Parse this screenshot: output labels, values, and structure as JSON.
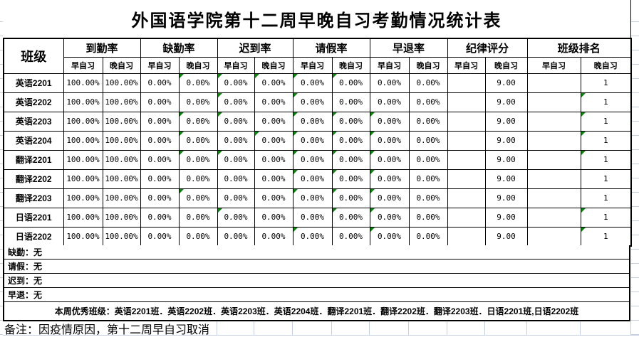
{
  "title": "外国语学院第十二周早晚自习考勤情况统计表",
  "table": {
    "class_header": "班级",
    "groups": [
      {
        "label": "到勤率"
      },
      {
        "label": "缺勤率"
      },
      {
        "label": "迟到率"
      },
      {
        "label": "请假率"
      },
      {
        "label": "早退率"
      },
      {
        "label": "纪律评分"
      },
      {
        "label": "班级排名"
      }
    ],
    "subheaders": [
      "早自习",
      "晚自习"
    ],
    "rows": [
      {
        "class": "英语2201",
        "values": [
          "100.00%",
          "100.00%",
          "0.00%",
          "0.00%",
          "0.00%",
          "0.00%",
          "0.00%",
          "0.00%",
          "0.00%",
          "0.00%",
          "",
          "9.00",
          "",
          "1"
        ],
        "markers": [
          3,
          4,
          5,
          6,
          7
        ]
      },
      {
        "class": "英语2202",
        "values": [
          "100.00%",
          "100.00%",
          "0.00%",
          "0.00%",
          "0.00%",
          "0.00%",
          "0.00%",
          "0.00%",
          "0.00%",
          "0.00%",
          "",
          "9.00",
          "",
          "1"
        ],
        "markers": [
          4,
          6,
          13
        ]
      },
      {
        "class": "英语2203",
        "values": [
          "100.00%",
          "100.00%",
          "0.00%",
          "0.00%",
          "0.00%",
          "0.00%",
          "0.00%",
          "0.00%",
          "0.00%",
          "0.00%",
          "",
          "9.00",
          "",
          "1"
        ],
        "markers": [
          3,
          4,
          6,
          7,
          8,
          13
        ]
      },
      {
        "class": "英语2204",
        "values": [
          "100.00%",
          "100.00%",
          "0.00%",
          "0.00%",
          "0.00%",
          "0.00%",
          "0.00%",
          "0.00%",
          "0.00%",
          "0.00%",
          "",
          "9.00",
          "",
          "1"
        ],
        "markers": [
          3,
          5,
          6,
          7,
          8,
          13
        ]
      },
      {
        "class": "翻译2201",
        "values": [
          "100.00%",
          "100.00%",
          "0.00%",
          "0.00%",
          "0.00%",
          "0.00%",
          "0.00%",
          "0.00%",
          "0.00%",
          "0.00%",
          "",
          "9.00",
          "",
          "1"
        ],
        "markers": [
          3,
          4,
          6,
          7,
          8,
          13
        ]
      },
      {
        "class": "翻译2202",
        "values": [
          "100.00%",
          "100.00%",
          "0.00%",
          "0.00%",
          "0.00%",
          "0.00%",
          "0.00%",
          "0.00%",
          "0.00%",
          "0.00%",
          "",
          "9.00",
          "",
          "1"
        ],
        "markers": [
          6,
          7,
          8
        ]
      },
      {
        "class": "翻译2203",
        "values": [
          "100.00%",
          "100.00%",
          "0.00%",
          "0.00%",
          "0.00%",
          "0.00%",
          "0.00%",
          "0.00%",
          "0.00%",
          "0.00%",
          "",
          "9.00",
          "",
          "1"
        ],
        "markers": [
          3,
          6,
          7,
          8
        ]
      },
      {
        "class": "日语2201",
        "values": [
          "100.00%",
          "100.00%",
          "0.00%",
          "0.00%",
          "0.00%",
          "0.00%",
          "0.00%",
          "0.00%",
          "0.00%",
          "0.00%",
          "",
          "9.00",
          "",
          "1"
        ],
        "markers": [
          4,
          7,
          8,
          13
        ]
      },
      {
        "class": "日语2202",
        "values": [
          "100.00%",
          "100.00%",
          "0.00%",
          "0.00%",
          "0.00%",
          "0.00%",
          "0.00%",
          "0.00%",
          "0.00%",
          "0.00%",
          "",
          "9.00",
          "",
          "1"
        ],
        "markers": [
          6,
          8,
          13
        ]
      }
    ]
  },
  "notes": [
    {
      "text": "缺勤：无"
    },
    {
      "text": "请假：无"
    },
    {
      "text": "迟到：无"
    },
    {
      "text": "早退：无"
    }
  ],
  "excellent_line": "本周优秀班级：英语2201班．英语2202班．英语2203班．英语2204班．翻译2201班．翻译2202班．翻译2203班．日语2201班,日语2202班",
  "remark": "备注：因疫情原因，第十二周早自习取消",
  "colors": {
    "border": "#000000",
    "gridline": "#c4cede",
    "error_marker": "#128012"
  }
}
